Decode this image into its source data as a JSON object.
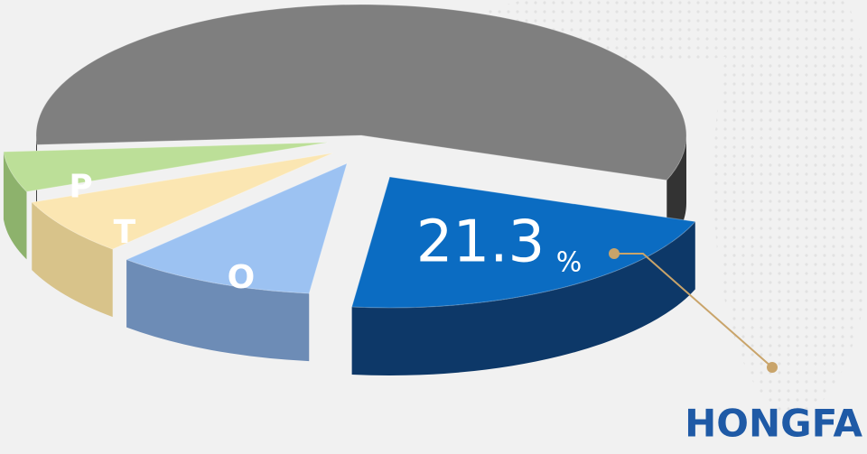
{
  "chart_data": {
    "type": "pie",
    "categories": [
      null,
      "HONGFA",
      "O",
      "T",
      "P"
    ],
    "values": [
      56.7,
      21.3,
      10,
      7,
      5
    ],
    "colors": [
      "#7f7f7f",
      "#0b6cc2",
      "#9cc2f2",
      "#fbe6b2",
      "#bcdf98"
    ],
    "side_colors": [
      "#333333",
      "#0d3868",
      "#6d8cb6",
      "#d8c38a",
      "#8db26c"
    ],
    "unit": "%"
  }
}
